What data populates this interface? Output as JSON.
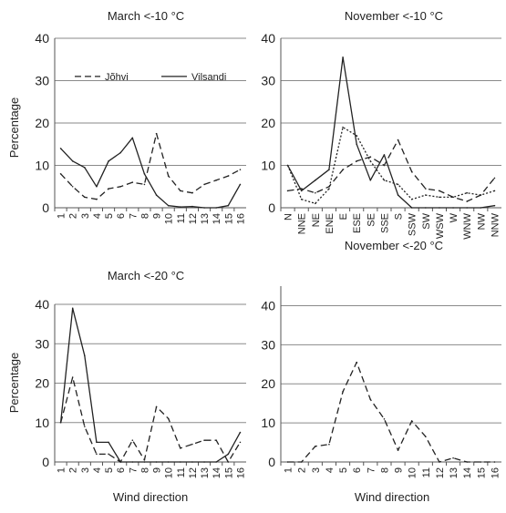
{
  "figure": {
    "xlabel_left": "Wind direction",
    "xlabel_right": "Wind direction"
  },
  "chart_data": [
    {
      "type": "line",
      "title": "March <-10 °C",
      "ylabel": "Percentage",
      "xlabel": "",
      "ylim": [
        0,
        40
      ],
      "yticks": [
        "0",
        "10",
        "20",
        "30",
        "40"
      ],
      "categories": [
        "1",
        "2",
        "3",
        "4",
        "5",
        "6",
        "7",
        "8",
        "9",
        "10",
        "11",
        "12",
        "13",
        "14",
        "15",
        "16"
      ],
      "legend_position": "top-left",
      "series": [
        {
          "name": "Jõhvi",
          "style": "dashed",
          "values": [
            8,
            5,
            2.5,
            2,
            4.5,
            5,
            6,
            5.5,
            17.5,
            7.5,
            4,
            3.5,
            5.5,
            6.5,
            7.5,
            9
          ]
        },
        {
          "name": "Vilsandi",
          "style": "solid",
          "values": [
            14,
            11,
            9.5,
            5,
            11,
            13,
            16.5,
            8,
            3,
            0.5,
            0.2,
            0.3,
            0,
            0,
            0.5,
            5.5
          ]
        }
      ]
    },
    {
      "type": "line",
      "title": "November <-10 °C",
      "ylabel": "",
      "xlabel": "",
      "ylim": [
        0,
        40
      ],
      "yticks": [
        "0",
        "10",
        "20",
        "30",
        "40"
      ],
      "categories": [
        "N",
        "NNE",
        "NE",
        "ENE",
        "E",
        "ESE",
        "SE",
        "SSE",
        "S",
        "SSW",
        "SW",
        "WSW",
        "W",
        "WNW",
        "NW",
        "NNW"
      ],
      "series": [
        {
          "style": "solid",
          "values": [
            10,
            4,
            6.5,
            9,
            35.5,
            15,
            6.5,
            12.5,
            3,
            0,
            0,
            0,
            0,
            0,
            0,
            0.5
          ]
        },
        {
          "style": "dashed",
          "values": [
            4,
            4.5,
            3.5,
            5,
            9,
            11,
            12,
            10,
            16,
            8.5,
            4.5,
            4,
            2.5,
            1.5,
            3,
            7
          ]
        },
        {
          "style": "dotted",
          "values": [
            10,
            2,
            1,
            4.5,
            19,
            17,
            11,
            6.5,
            5.5,
            2,
            3,
            2.5,
            2.5,
            3.5,
            3,
            4
          ]
        }
      ]
    },
    {
      "type": "line",
      "title": "March <-20 °C",
      "ylabel": "Percentage",
      "xlabel": "Wind direction",
      "ylim": [
        0,
        40
      ],
      "yticks": [
        "0",
        "10",
        "20",
        "30",
        "40"
      ],
      "categories": [
        "1",
        "2",
        "3",
        "4",
        "5",
        "6",
        "7",
        "8",
        "9",
        "10",
        "11",
        "12",
        "13",
        "14",
        "15",
        "16"
      ],
      "series": [
        {
          "style": "dashed",
          "values": [
            10,
            21.5,
            9,
            2,
            2,
            0,
            5.5,
            0.5,
            14,
            11,
            3.5,
            4.5,
            5.5,
            5.5,
            0,
            5
          ]
        },
        {
          "style": "solid",
          "values": [
            10,
            39,
            27,
            5,
            5,
            0,
            0,
            0,
            0,
            0,
            0,
            0,
            0,
            0,
            2,
            7.5
          ]
        }
      ]
    },
    {
      "type": "line",
      "title": "November <-20 °C",
      "ylabel": "",
      "xlabel": "Wind direction",
      "ylim": [
        0,
        45
      ],
      "yticks": [
        "0",
        "10",
        "20",
        "30",
        "40"
      ],
      "categories": [
        "1",
        "2",
        "3",
        "4",
        "5",
        "6",
        "7",
        "8",
        "9",
        "10",
        "11",
        "12",
        "13",
        "14",
        "15",
        "16"
      ],
      "series": [
        {
          "style": "dashed",
          "values": [
            0,
            0,
            4,
            4.5,
            18,
            25.5,
            16,
            11,
            3,
            10.5,
            6.5,
            0,
            1,
            0,
            0,
            0
          ]
        }
      ]
    }
  ]
}
